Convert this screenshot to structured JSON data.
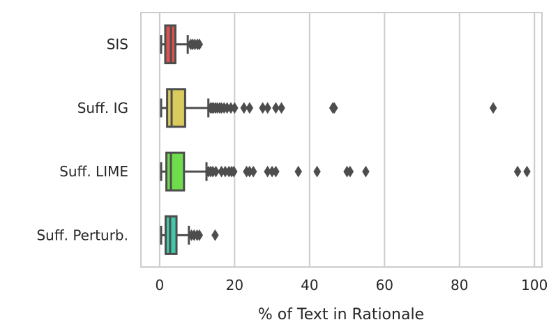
{
  "chart_data": {
    "type": "box",
    "orientation": "horizontal",
    "title": "",
    "xlabel": "% of Text in Rationale",
    "ylabel": "",
    "xlim": [
      -5,
      102
    ],
    "xticks": [
      0,
      20,
      40,
      60,
      80,
      100
    ],
    "grid": "vertical",
    "legend": "none",
    "categories": [
      "SIS",
      "Suff. IG",
      "Suff. LIME",
      "Suff. Perturb."
    ],
    "boxes": [
      {
        "label": "SIS",
        "color": "#d9534f",
        "whisker_low": 0.4,
        "q1": 1.5,
        "median": 3.0,
        "q3": 4.2,
        "whisker_high": 7.5,
        "outliers": [
          8.3,
          8.8,
          9.4,
          10.1,
          10.6
        ]
      },
      {
        "label": "Suff. IG",
        "color": "#d9cc5c",
        "whisker_low": 0.4,
        "q1": 2.0,
        "median": 3.2,
        "q3": 6.8,
        "whisker_high": 13.0,
        "outliers": [
          13.6,
          14.0,
          14.4,
          14.9,
          15.4,
          16.0,
          16.5,
          17.2,
          18.0,
          19.0,
          20.0,
          22.5,
          24.0,
          27.5,
          28.8,
          31.0,
          32.5,
          46.2,
          46.6,
          89.0
        ]
      },
      {
        "label": "Suff. LIME",
        "color": "#6fdc4c",
        "whisker_low": 0.4,
        "q1": 1.8,
        "median": 3.0,
        "q3": 6.5,
        "whisker_high": 12.5,
        "outliers": [
          13.0,
          13.6,
          14.2,
          15.0,
          16.5,
          17.5,
          18.5,
          19.2,
          19.8,
          23.2,
          24.0,
          25.0,
          28.8,
          30.0,
          31.0,
          37.0,
          42.0,
          50.0,
          50.8,
          55.0,
          95.5,
          98.0
        ]
      },
      {
        "label": "Suff. Perturb.",
        "color": "#3fc9a8",
        "whisker_low": 0.4,
        "q1": 1.6,
        "median": 2.8,
        "q3": 4.5,
        "whisker_high": 7.8,
        "outliers": [
          8.5,
          9.2,
          10.0,
          10.6,
          14.8
        ]
      }
    ]
  }
}
